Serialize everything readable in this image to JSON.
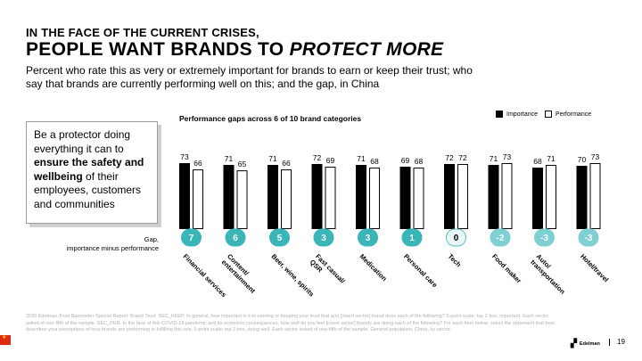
{
  "header": {
    "kicker": "IN THE FACE OF THE CURRENT CRISES,",
    "headline_main": "PEOPLE WANT BRANDS TO ",
    "headline_emph": "PROTECT MORE",
    "subtitle": "Percent who rate this as very or extremely important for brands to earn or keep their trust; who say that brands are currently performing well on this; and the gap, in China"
  },
  "callout": {
    "pre": "Be a protector doing everything it can to ",
    "bold": "ensure the safety and wellbeing",
    "post": " of their employees, customers and communities"
  },
  "gap_label": {
    "line1": "Gap,",
    "line2": "importance minus performance"
  },
  "legend": {
    "importance": "Importance",
    "performance": "Performance"
  },
  "colors": {
    "importance": "#000000",
    "performance": "#ffffff",
    "gap_positive": "#3ab5b8",
    "gap_zero": "#eaf7f7",
    "gap_negative": "#7fd0d2"
  },
  "chart_data": {
    "type": "bar",
    "title": "Performance gaps across 6 of 10 brand categories",
    "categories": [
      "Financial services",
      "Content/ entertainment",
      "Beer, wine, spirits",
      "Fast casual/ QSR",
      "Medication",
      "Personal care",
      "Tech",
      "Food maker",
      "Auto/ transportation",
      "Hotel/travel"
    ],
    "series": [
      {
        "name": "Importance",
        "values": [
          73,
          71,
          71,
          72,
          71,
          69,
          72,
          71,
          68,
          70
        ]
      },
      {
        "name": "Performance",
        "values": [
          66,
          65,
          66,
          69,
          68,
          68,
          72,
          73,
          71,
          73
        ]
      }
    ],
    "gaps": [
      "7",
      "6",
      "5",
      "3",
      "3",
      "1",
      "0",
      "-2",
      "-3",
      "-3"
    ],
    "ylim": [
      0,
      80
    ],
    "xlabel": "",
    "ylabel": ""
  },
  "footnote": "2020 Edelman Trust Barometer Special Report: Brand Trust. SEC_KEEP. In general, how important is it to earning or keeping your trust that a(n) [insert sector] brand does each of the following? 5-point scale; top 2 box, important. Each sector asked of one-fifth of the sample. SEC_PER. In the face of this COVID-19 pandemic and its economic consequences, how well do you feel [insert sector] brands are doing each of the following? For each item below, select the statement that best describes your perceptions of how brands are performing in fulfilling this role. 5-point scale; top 2 box, doing well. Each sector asked of one-fifth of the sample. General population, China, by sector.",
  "brand": "Edelman",
  "page_number": "19"
}
